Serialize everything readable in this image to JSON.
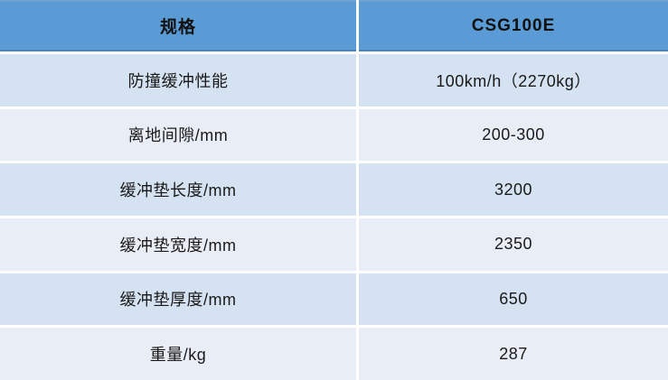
{
  "table": {
    "title": "product-spec-table",
    "header": {
      "spec_column": "规格",
      "model_column": "CSG100E"
    },
    "rows": [
      {
        "label": "防撞缓冲性能",
        "value": "100km/h（2270kg）"
      },
      {
        "label": "离地间隙/mm",
        "value": "200-300"
      },
      {
        "label": "缓冲垫长度/mm",
        "value": "3200"
      },
      {
        "label": "缓冲垫宽度/mm",
        "value": "2350"
      },
      {
        "label": "缓冲垫厚度/mm",
        "value": "650"
      },
      {
        "label": "重量/kg",
        "value": "287"
      }
    ]
  },
  "colors": {
    "header_bg": "#5b9bd5",
    "header_edge_top": "#6fa3d3",
    "header_edge_bottom": "#4a84bd",
    "header_text": "#111111",
    "row_odd_bg": "#d5e2f1",
    "row_even_bg": "#e9edf5",
    "text": "#1a1a1a",
    "divider": "#ffffff"
  }
}
